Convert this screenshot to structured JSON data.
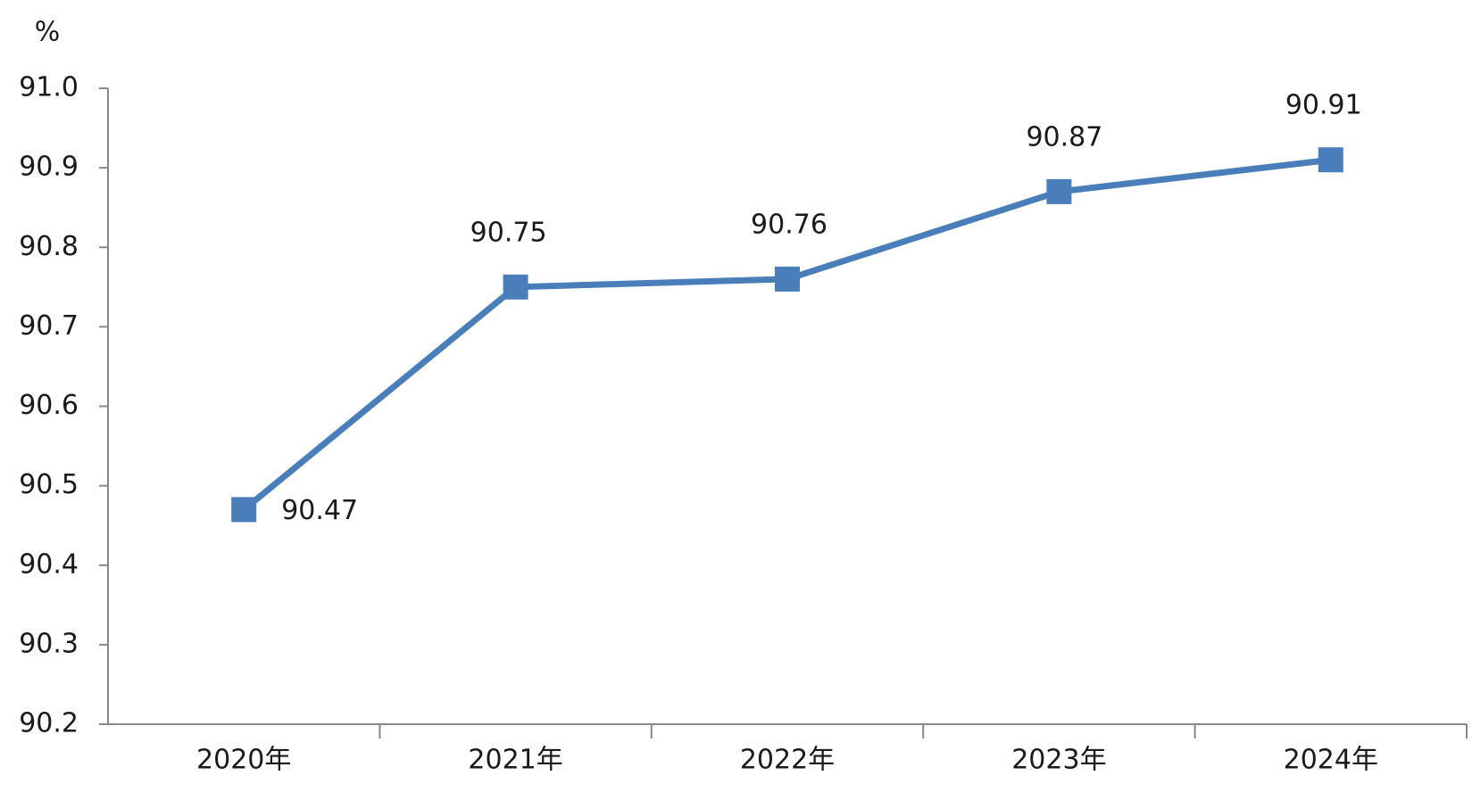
{
  "chart_data": {
    "type": "line",
    "ylabel": "%",
    "categories": [
      "2020年",
      "2021年",
      "2022年",
      "2023年",
      "2024年"
    ],
    "values": [
      90.47,
      90.75,
      90.76,
      90.87,
      90.91
    ],
    "color": "#4a7ebb",
    "ylim": [
      90.2,
      91
    ],
    "yticks": [
      90.2,
      90.3,
      90.4,
      90.5,
      90.6,
      90.7,
      90.8,
      90.9,
      {
        "value": 91,
        "label": "91.0"
      }
    ],
    "grid": false
  }
}
